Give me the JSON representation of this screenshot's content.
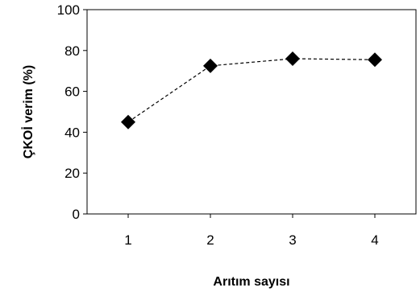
{
  "chart_data": {
    "type": "line",
    "title": "",
    "xlabel": "Arıtım sayısı",
    "ylabel": "ÇKOİ verim (%)",
    "categories": [
      "1",
      "2",
      "3",
      "4"
    ],
    "series": [
      {
        "values": [
          45,
          72.5,
          76,
          75.5
        ]
      }
    ],
    "ylim": [
      0,
      100
    ],
    "yticks": [
      "0",
      "20",
      "40",
      "60",
      "80",
      "100"
    ],
    "grid": false,
    "legend": "none",
    "marker": "diamond",
    "line_style": "dashed",
    "colors": {
      "marker": "#000000",
      "line": "#000000",
      "frame": "#000000"
    }
  }
}
